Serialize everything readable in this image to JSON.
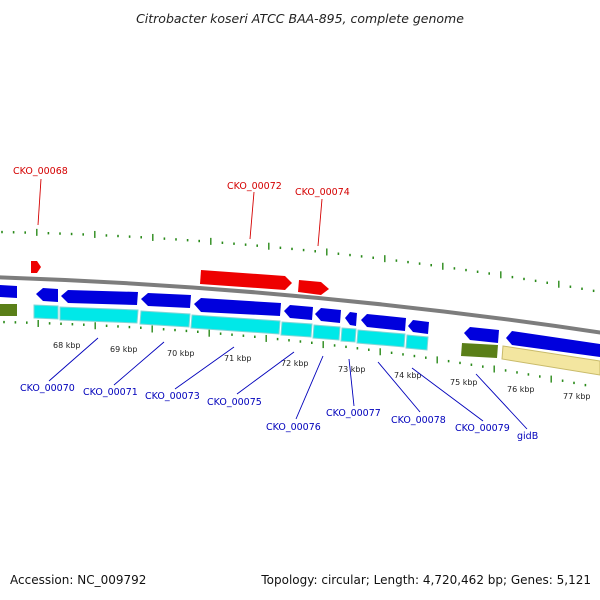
{
  "title": "Citrobacter koseri ATCC BAA-895, complete genome",
  "footer": {
    "accession": "Accession: NC_009792",
    "summary": "Topology: circular; Length: 4,720,462 bp; Genes: 5,121"
  },
  "colors": {
    "background": "#ffffff",
    "backbone": "#8c8c8c",
    "forward_cds": "#ee0000",
    "reverse_cds": "#0000dd",
    "rna": "#00e8e8",
    "gc_skew_dark": "#5a7f18",
    "gc_skew_light": "#f3e6a0",
    "tick": "#2a8a1a",
    "label_forward": "#d40000",
    "label_reverse": "#0000bb"
  },
  "ruler": {
    "ticks": [
      "68 kbp",
      "69 kbp",
      "70 kbp",
      "71 kbp",
      "72 kbp",
      "73 kbp",
      "74 kbp",
      "75 kbp",
      "76 kbp",
      "77 kbp"
    ]
  },
  "labels": {
    "forward": [
      "CKO_00068",
      "CKO_00072",
      "CKO_00074"
    ],
    "reverse": [
      "CKO_00070",
      "CKO_00071",
      "CKO_00073",
      "CKO_00075",
      "CKO_00076",
      "CKO_00077",
      "CKO_00078",
      "CKO_00079",
      "gidB"
    ]
  }
}
